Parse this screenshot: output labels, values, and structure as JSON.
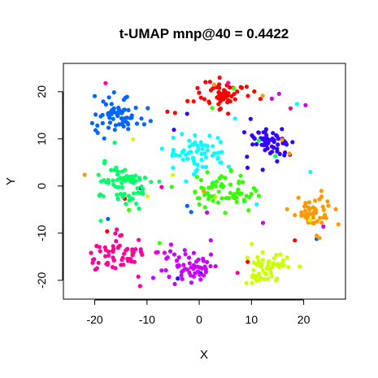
{
  "chart_data": {
    "type": "scatter",
    "title": "t-UMAP mnp@40 = 0.4422",
    "xlabel": "X",
    "ylabel": "Y",
    "xlim": [
      -26,
      28
    ],
    "ylim": [
      -24,
      26
    ],
    "xticks": [
      "-20",
      "-10",
      "0",
      "10",
      "20"
    ],
    "yticks": [
      "-20",
      "-10",
      "0",
      "10",
      "20"
    ],
    "grid": false,
    "legend": "none",
    "series": [
      {
        "color": "#ff0000",
        "center": [
          4.5,
          19.5
        ],
        "spread": [
          3.4,
          2.2
        ],
        "count": 60
      },
      {
        "color": "#0066ff",
        "center": [
          -15.5,
          15.5
        ],
        "spread": [
          3.0,
          2.6
        ],
        "count": 62
      },
      {
        "color": "#3300ff",
        "center": [
          13.5,
          9.0
        ],
        "spread": [
          3.0,
          2.4
        ],
        "count": 60
      },
      {
        "color": "#00ffff",
        "center": [
          0.0,
          7.0
        ],
        "spread": [
          4.0,
          2.6
        ],
        "count": 58
      },
      {
        "color": "#00ff66",
        "center": [
          -15.0,
          0.0
        ],
        "spread": [
          3.6,
          3.0
        ],
        "count": 70
      },
      {
        "color": "#33ff00",
        "center": [
          4.5,
          -1.5
        ],
        "spread": [
          4.0,
          2.6
        ],
        "count": 62
      },
      {
        "color": "#ff9900",
        "center": [
          21.5,
          -5.0
        ],
        "spread": [
          2.8,
          2.4
        ],
        "count": 52
      },
      {
        "color": "#ff0099",
        "center": [
          -15.5,
          -14.5
        ],
        "spread": [
          3.8,
          2.8
        ],
        "count": 66
      },
      {
        "color": "#cc00ff",
        "center": [
          -2.5,
          -16.5
        ],
        "spread": [
          3.4,
          2.6
        ],
        "count": 62
      },
      {
        "color": "#ccff00",
        "center": [
          13.0,
          -17.0
        ],
        "spread": [
          2.6,
          2.4
        ],
        "count": 55
      }
    ]
  }
}
